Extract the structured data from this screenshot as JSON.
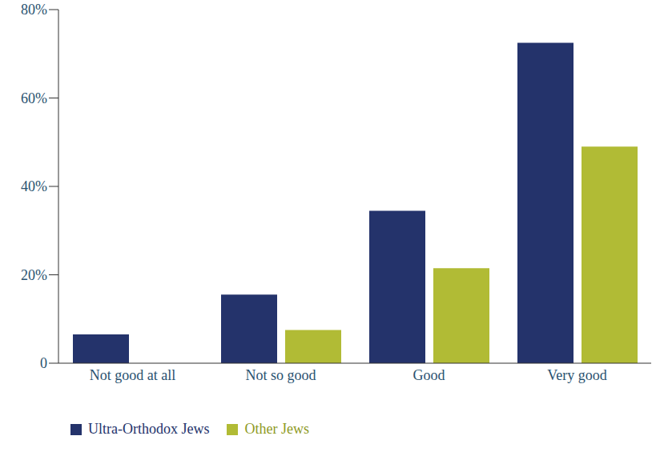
{
  "chart_data": {
    "type": "bar",
    "categories": [
      "Not good at all",
      "Not so good",
      "Good",
      "Very good"
    ],
    "series": [
      {
        "name": "Ultra-Orthodox Jews",
        "color": "#24336b",
        "values": [
          6.5,
          15.5,
          34.5,
          72.5
        ]
      },
      {
        "name": "Other Jews",
        "color": "#b1bb35",
        "values": [
          0,
          7.5,
          21.5,
          49
        ]
      }
    ],
    "ylim": [
      0,
      80
    ],
    "yticks": [
      0,
      {
        "value": 20,
        "label": "20%"
      },
      {
        "value": 40,
        "label": "40%"
      },
      {
        "value": 60,
        "label": "60%"
      },
      {
        "value": 80,
        "label": "80%"
      }
    ],
    "grid": false,
    "legend": "bottom"
  }
}
